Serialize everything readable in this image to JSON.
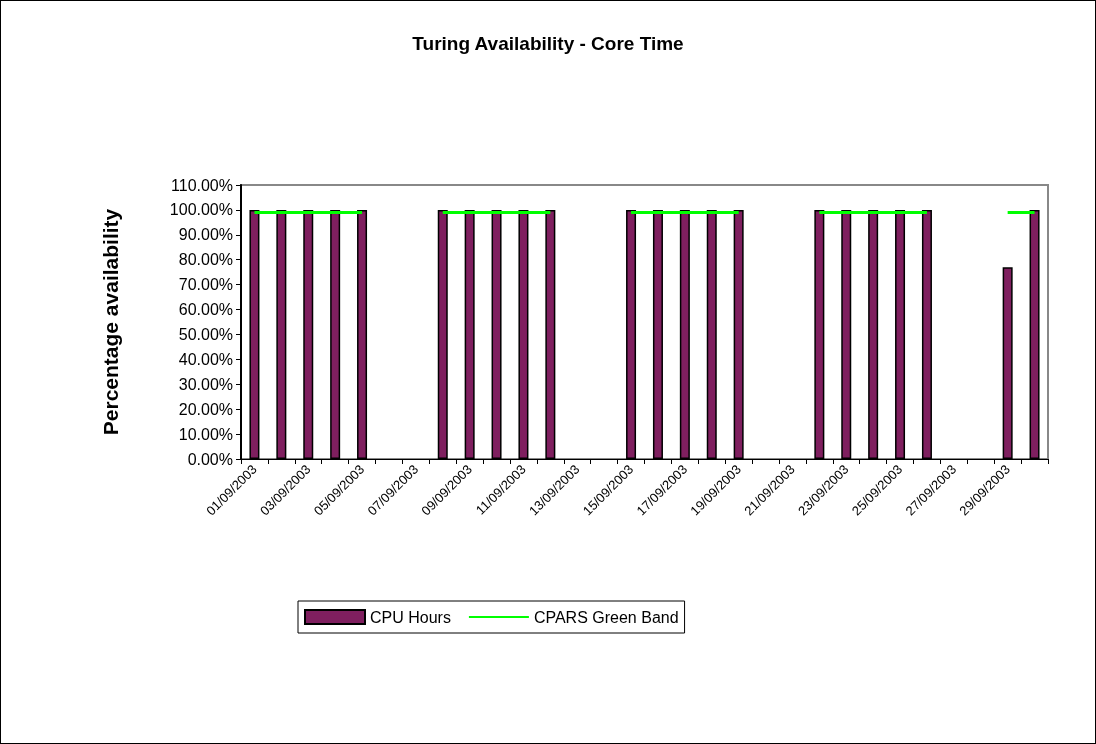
{
  "chart_data": {
    "type": "bar",
    "title": "Turing Availability - Core Time",
    "ylabel": "Percentage availability",
    "categories": [
      "01/09/2003",
      null,
      "03/09/2003",
      null,
      "05/09/2003",
      null,
      "07/09/2003",
      null,
      "09/09/2003",
      null,
      "11/09/2003",
      null,
      "13/09/2003",
      null,
      "15/09/2003",
      null,
      "17/09/2003",
      null,
      "19/09/2003",
      null,
      "21/09/2003",
      null,
      "23/09/2003",
      null,
      "25/09/2003",
      null,
      "27/09/2003",
      null,
      "29/09/2003",
      null
    ],
    "series": [
      {
        "name": "CPU Hours",
        "color": "#7f1f5f",
        "values": [
          100,
          100,
          100,
          100,
          100,
          null,
          null,
          100,
          100,
          100,
          100,
          100,
          null,
          null,
          100,
          100,
          100,
          100,
          100,
          null,
          null,
          100,
          100,
          100,
          100,
          100,
          null,
          null,
          77,
          100
        ]
      },
      {
        "name": "CPARS Green Band",
        "type": "line",
        "color": "#00ff00",
        "values": [
          99,
          99,
          99,
          99,
          99,
          null,
          null,
          99,
          99,
          99,
          99,
          99,
          null,
          null,
          99,
          99,
          99,
          99,
          99,
          null,
          null,
          99,
          99,
          99,
          99,
          99,
          null,
          null,
          99,
          99
        ]
      }
    ],
    "ylim": [
      0,
      110
    ],
    "yticks": [
      {
        "value": 0,
        "label": "0.00%"
      },
      {
        "value": 10,
        "label": "10.00%"
      },
      {
        "value": 20,
        "label": "20.00%"
      },
      {
        "value": 30,
        "label": "30.00%"
      },
      {
        "value": 40,
        "label": "40.00%"
      },
      {
        "value": 50,
        "label": "50.00%"
      },
      {
        "value": 60,
        "label": "60.00%"
      },
      {
        "value": 70,
        "label": "70.00%"
      },
      {
        "value": 80,
        "label": "80.00%"
      },
      {
        "value": 90,
        "label": "90.00%"
      },
      {
        "value": 100,
        "label": "100.00%"
      },
      {
        "value": 110,
        "label": "110.00%"
      }
    ],
    "grid": false,
    "legend": "bottom",
    "marker": "none"
  }
}
